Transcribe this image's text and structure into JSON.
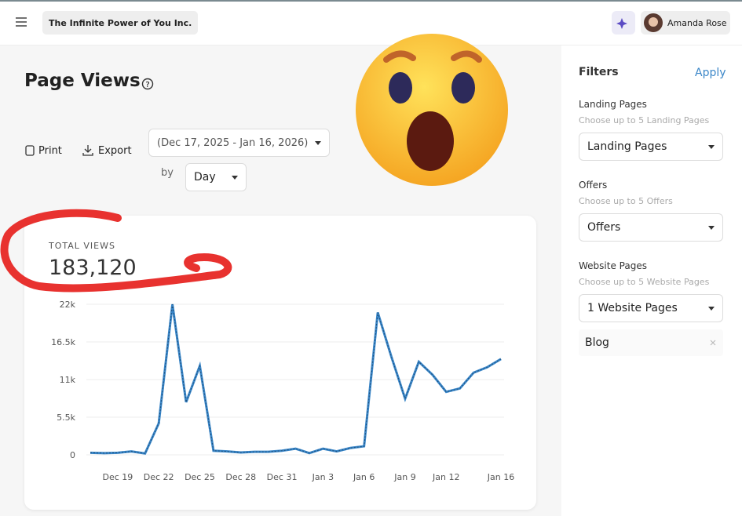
{
  "header": {
    "company": "The Infinite Power of You Inc.",
    "user": "Amanda Rose"
  },
  "page": {
    "title": "Page Views",
    "print": "Print",
    "export": "Export",
    "date_range": "(Dec 17, 2025 - Jan 16, 2026)",
    "by": "by",
    "interval": "Day"
  },
  "chart_data": {
    "type": "line",
    "title": "TOTAL VIEWS",
    "total": {
      "value": 183120,
      "label": "183,120"
    },
    "categories": [
      null,
      null,
      "Dec 19",
      null,
      null,
      "Dec 22",
      null,
      null,
      "Dec 25",
      null,
      null,
      "Dec 28",
      null,
      null,
      "Dec 31",
      null,
      null,
      "Jan 3",
      null,
      null,
      "Jan 6",
      null,
      null,
      "Jan 9",
      null,
      null,
      "Jan 12",
      null,
      null,
      null,
      "Jan 16"
    ],
    "series": [
      {
        "name": "Page Views",
        "color": "#3a86c8",
        "values": [
          300,
          250,
          300,
          500,
          200,
          4600,
          22000,
          7700,
          13000,
          600,
          500,
          350,
          450,
          450,
          600,
          900,
          250,
          900,
          500,
          1000,
          1250,
          20800,
          14300,
          8200,
          13600,
          11700,
          9200,
          9700,
          12000,
          12800,
          14000
        ]
      }
    ],
    "ylim": [
      0,
      22000
    ],
    "yticks": [
      0,
      {
        "value": 5500,
        "label": "5.5k"
      },
      {
        "value": 11000,
        "label": "11k"
      },
      {
        "value": 16500,
        "label": "16.5k"
      },
      {
        "value": 22000,
        "label": "22k"
      }
    ],
    "grid": true
  },
  "filters": {
    "title": "Filters",
    "apply": "Apply",
    "groups": [
      {
        "label": "Landing Pages",
        "hint": "Choose up to 5 Landing Pages",
        "select": "Landing Pages"
      },
      {
        "label": "Offers",
        "hint": "Choose up to 5 Offers",
        "select": "Offers"
      },
      {
        "label": "Website Pages",
        "hint": "Choose up to 5 Website Pages",
        "select": "1 Website Pages"
      }
    ],
    "selected": [
      "Blog"
    ]
  }
}
